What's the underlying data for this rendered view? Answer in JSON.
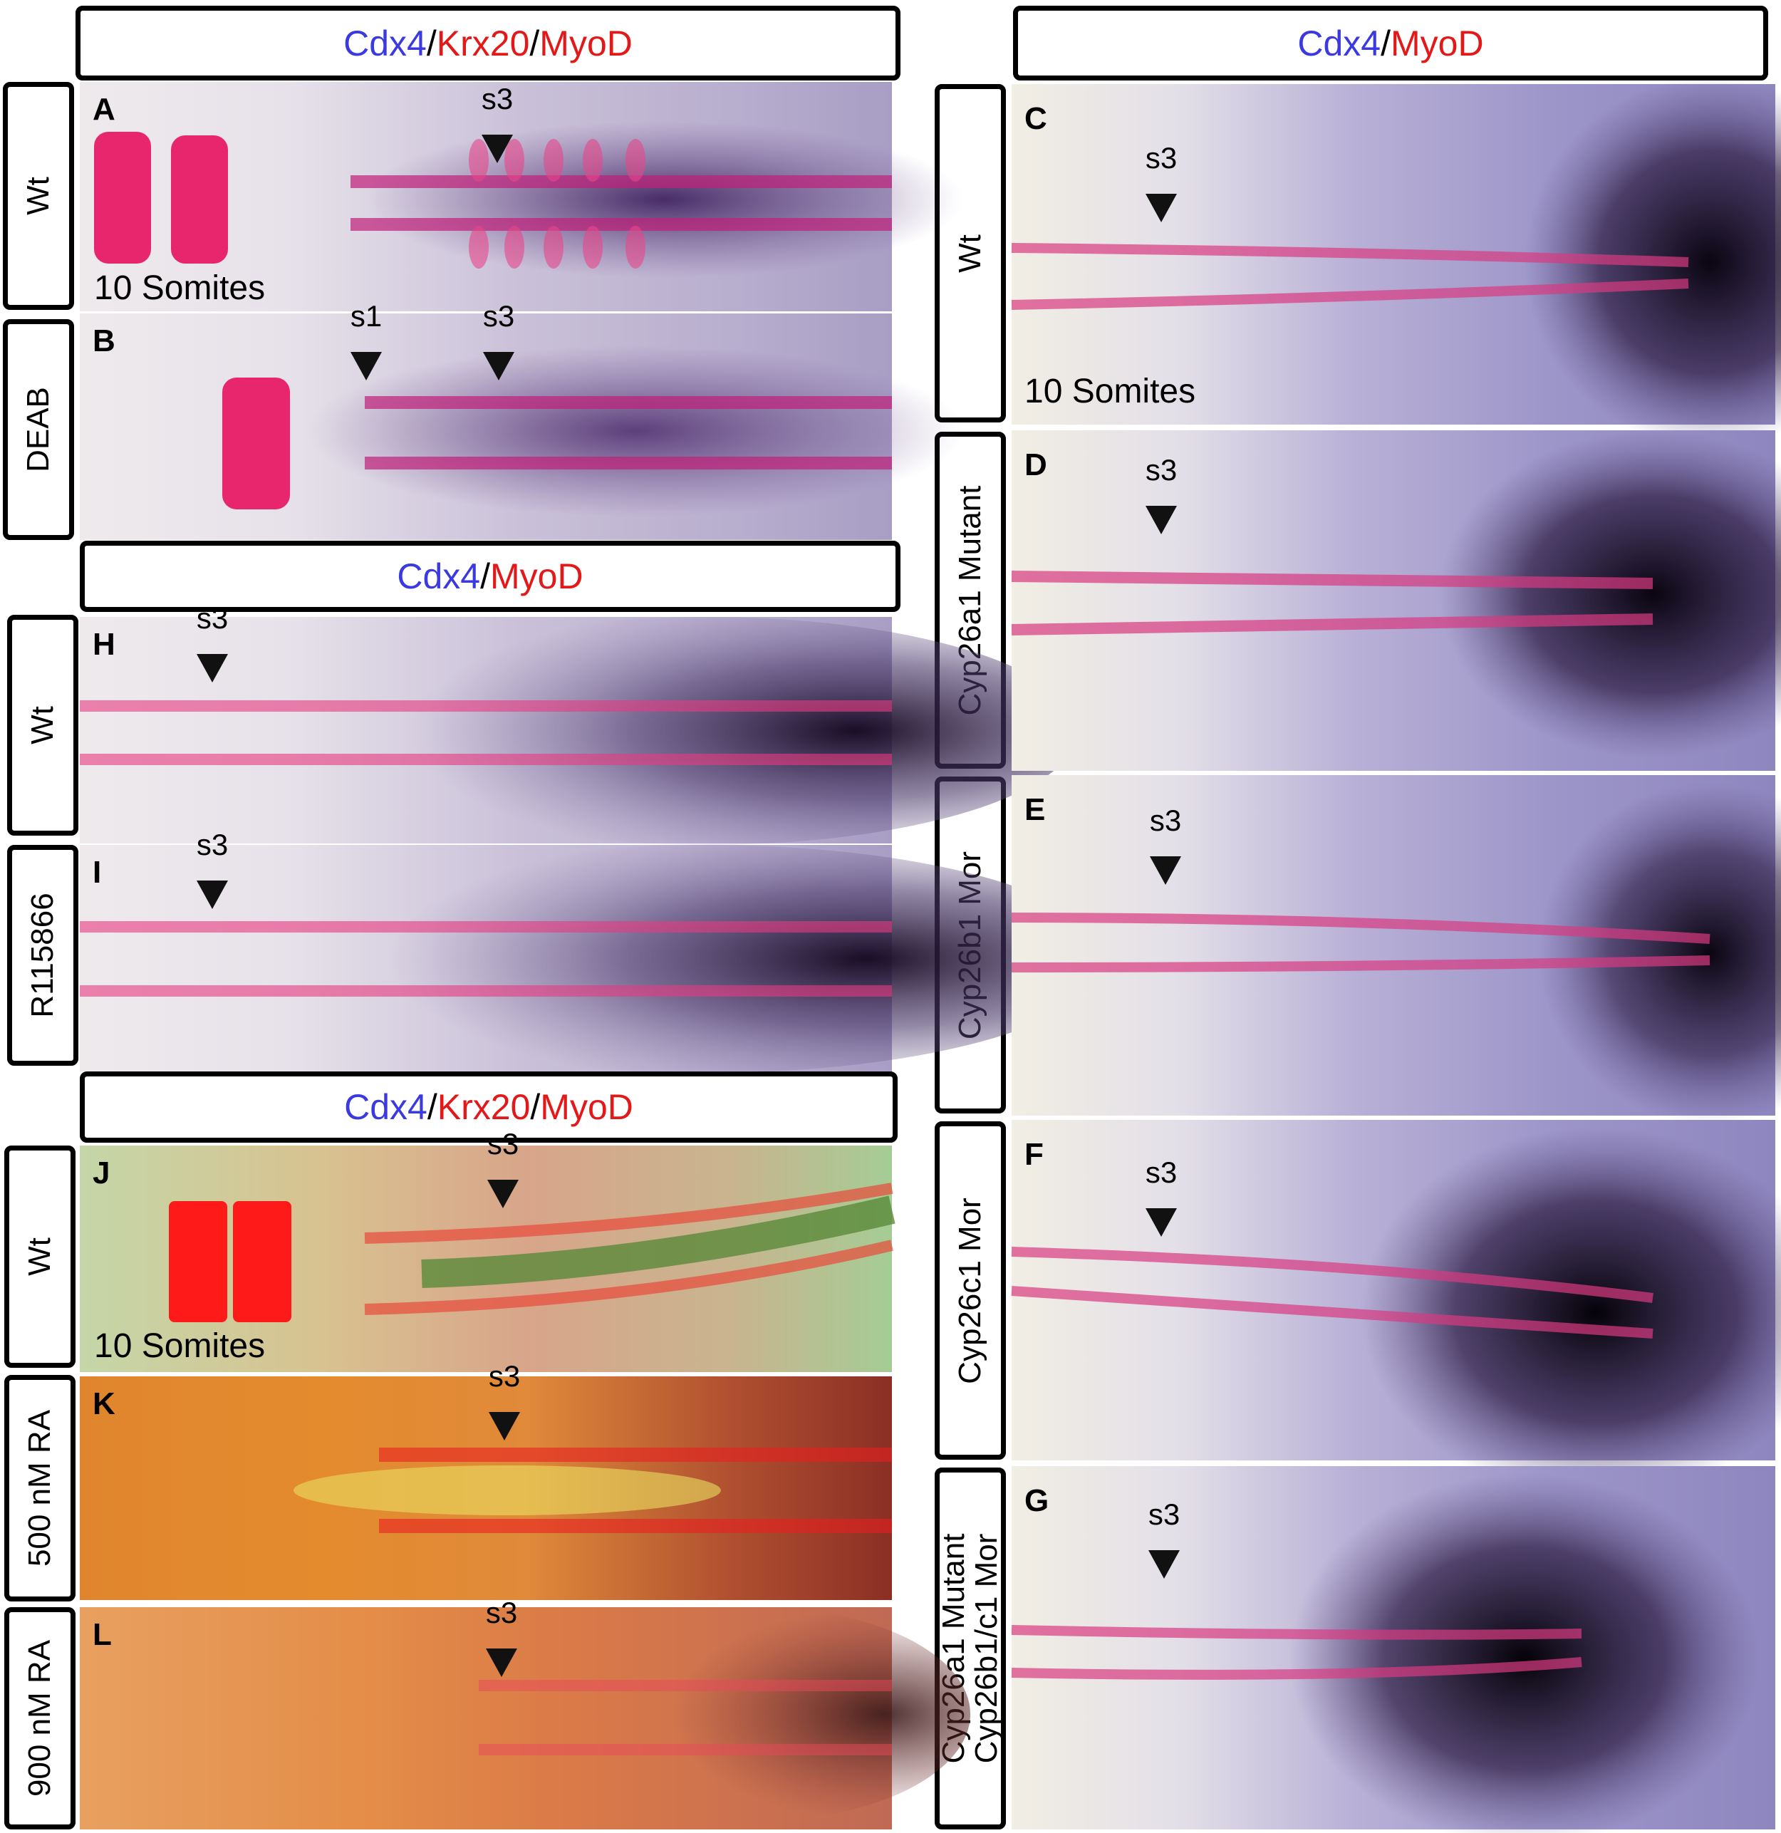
{
  "headers": {
    "top_left": {
      "g1": "Cdx4",
      "s1": "/",
      "g2": "Krx20",
      "s2": "/",
      "g3": "MyoD"
    },
    "top_right": {
      "g1": "Cdx4",
      "s1": "/",
      "g2": "MyoD"
    },
    "middle_left": {
      "g1": "Cdx4",
      "s1": "/",
      "g2": "MyoD"
    },
    "bottom_left": {
      "g1": "Cdx4",
      "s1": "/",
      "g2": "Krx20",
      "s2": "/",
      "g3": "MyoD"
    }
  },
  "row_labels": {
    "A": "Wt",
    "B": "DEAB",
    "H": "Wt",
    "I": "R115866",
    "J": "Wt",
    "K": "500 nM RA",
    "L": "900 nM RA",
    "C": "Wt",
    "D": "Cyp26a1 Mutant",
    "E": "Cyp26b1 Mor",
    "F": "Cyp26c1 Mor",
    "G_line1": "Cyp26a1 Mutant",
    "G_line2": "Cyp26b1/c1 Mor"
  },
  "panel_letters": {
    "A": "A",
    "B": "B",
    "C": "C",
    "D": "D",
    "E": "E",
    "F": "F",
    "G": "G",
    "H": "H",
    "I": "I",
    "J": "J",
    "K": "K",
    "L": "L"
  },
  "stage_labels": {
    "A": "10 Somites",
    "C": "10 Somites",
    "J": "10 Somites"
  },
  "markers": {
    "s1": "s1",
    "s3": "s3"
  },
  "colors": {
    "cdx4": "#3a3ae0",
    "krx20_myod": "#e31818"
  }
}
